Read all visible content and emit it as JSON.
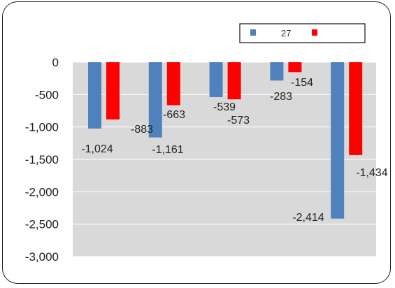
{
  "chart_data": {
    "type": "bar",
    "categories": [
      "",
      "",
      "",
      "",
      ""
    ],
    "series": [
      {
        "name": "27",
        "color": "#4f81bd",
        "values": [
          -1024,
          -1161,
          -539,
          -283,
          -2414
        ]
      },
      {
        "name": "",
        "color": "#ff0000",
        "values": [
          -883,
          -663,
          -573,
          -154,
          -1434
        ]
      }
    ],
    "data_labels": [
      [
        "-1,024",
        "-1,161",
        "-539",
        "-283",
        "-2,414"
      ],
      [
        "-883",
        "-663",
        "-573",
        "-154",
        "-1,434"
      ]
    ],
    "y_ticks": [
      0,
      -500,
      -1000,
      -1500,
      -2000,
      -2500,
      -3000
    ],
    "y_tick_labels": [
      "0",
      "-500",
      "-1,000",
      "-1,500",
      "-2,000",
      "-2,500",
      "-3,000"
    ],
    "ylim": [
      -3000,
      0
    ],
    "grid": true,
    "plot_background": "#d9d9d9",
    "legend_position": "top-right",
    "title": "",
    "xlabel": "",
    "ylabel": ""
  }
}
